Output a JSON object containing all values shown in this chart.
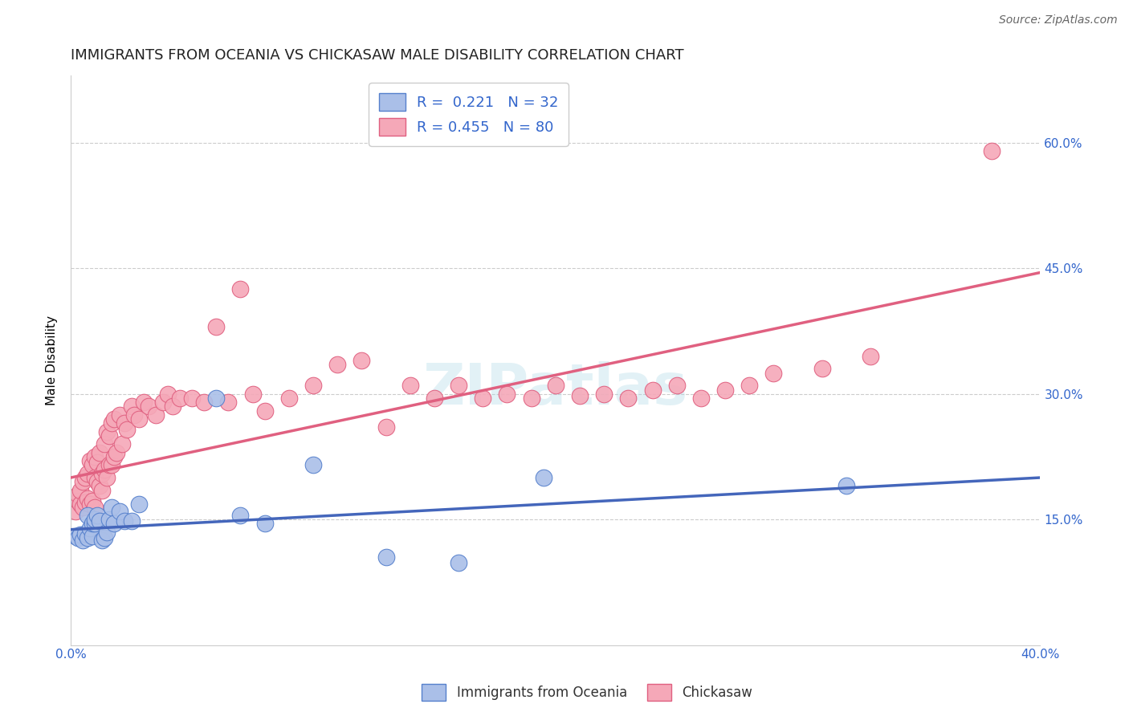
{
  "title": "IMMIGRANTS FROM OCEANIA VS CHICKASAW MALE DISABILITY CORRELATION CHART",
  "source": "Source: ZipAtlas.com",
  "ylabel": "Male Disability",
  "x_min": 0.0,
  "x_max": 0.4,
  "y_min": 0.0,
  "y_max": 0.68,
  "x_ticks": [
    0.0,
    0.1,
    0.2,
    0.3,
    0.4
  ],
  "x_tick_labels": [
    "0.0%",
    "",
    "",
    "",
    "40.0%"
  ],
  "y_ticks_right": [
    0.15,
    0.3,
    0.45,
    0.6
  ],
  "y_tick_labels_right": [
    "15.0%",
    "30.0%",
    "45.0%",
    "60.0%"
  ],
  "legend_text1": "R =  0.221   N = 32",
  "legend_text2": "R = 0.455   N = 80",
  "blue_scatter_color": "#AABFE8",
  "blue_scatter_edge": "#5580CC",
  "pink_scatter_color": "#F5A8B8",
  "pink_scatter_edge": "#E06080",
  "blue_line_color": "#4466BB",
  "pink_line_color": "#E06080",
  "watermark": "ZIPatlas",
  "grid_color": "#CCCCCC",
  "background_color": "#FFFFFF",
  "title_fontsize": 13,
  "tick_fontsize": 11,
  "legend_fontsize": 13,
  "blue_trend_x0": 0.0,
  "blue_trend_y0": 0.138,
  "blue_trend_x1": 0.4,
  "blue_trend_y1": 0.2,
  "pink_trend_x0": 0.0,
  "pink_trend_y0": 0.2,
  "pink_trend_x1": 0.4,
  "pink_trend_y1": 0.445,
  "blue_x": [
    0.002,
    0.003,
    0.004,
    0.005,
    0.006,
    0.007,
    0.007,
    0.008,
    0.009,
    0.009,
    0.01,
    0.01,
    0.011,
    0.012,
    0.013,
    0.014,
    0.015,
    0.016,
    0.017,
    0.018,
    0.02,
    0.022,
    0.025,
    0.028,
    0.06,
    0.07,
    0.08,
    0.1,
    0.13,
    0.16,
    0.195,
    0.32
  ],
  "blue_y": [
    0.13,
    0.128,
    0.132,
    0.125,
    0.133,
    0.128,
    0.155,
    0.14,
    0.13,
    0.145,
    0.145,
    0.15,
    0.155,
    0.148,
    0.125,
    0.128,
    0.135,
    0.15,
    0.165,
    0.145,
    0.16,
    0.148,
    0.148,
    0.168,
    0.295,
    0.155,
    0.145,
    0.215,
    0.105,
    0.098,
    0.2,
    0.19
  ],
  "pink_x": [
    0.002,
    0.003,
    0.003,
    0.004,
    0.004,
    0.005,
    0.005,
    0.006,
    0.006,
    0.007,
    0.007,
    0.008,
    0.008,
    0.009,
    0.009,
    0.01,
    0.01,
    0.01,
    0.011,
    0.011,
    0.012,
    0.012,
    0.013,
    0.013,
    0.014,
    0.014,
    0.015,
    0.015,
    0.016,
    0.016,
    0.017,
    0.017,
    0.018,
    0.018,
    0.019,
    0.02,
    0.021,
    0.022,
    0.023,
    0.025,
    0.026,
    0.028,
    0.03,
    0.032,
    0.035,
    0.038,
    0.04,
    0.042,
    0.045,
    0.05,
    0.055,
    0.06,
    0.065,
    0.07,
    0.075,
    0.08,
    0.09,
    0.1,
    0.11,
    0.12,
    0.13,
    0.14,
    0.15,
    0.16,
    0.17,
    0.18,
    0.19,
    0.2,
    0.21,
    0.22,
    0.23,
    0.24,
    0.25,
    0.26,
    0.27,
    0.28,
    0.29,
    0.31,
    0.33,
    0.38
  ],
  "pink_y": [
    0.16,
    0.172,
    0.18,
    0.168,
    0.185,
    0.165,
    0.195,
    0.17,
    0.2,
    0.175,
    0.205,
    0.168,
    0.22,
    0.172,
    0.215,
    0.165,
    0.2,
    0.225,
    0.195,
    0.218,
    0.19,
    0.23,
    0.205,
    0.185,
    0.21,
    0.24,
    0.2,
    0.255,
    0.215,
    0.25,
    0.215,
    0.265,
    0.225,
    0.27,
    0.23,
    0.275,
    0.24,
    0.265,
    0.258,
    0.285,
    0.275,
    0.27,
    0.29,
    0.285,
    0.275,
    0.29,
    0.3,
    0.285,
    0.295,
    0.295,
    0.29,
    0.38,
    0.29,
    0.425,
    0.3,
    0.28,
    0.295,
    0.31,
    0.335,
    0.34,
    0.26,
    0.31,
    0.295,
    0.31,
    0.295,
    0.3,
    0.295,
    0.31,
    0.298,
    0.3,
    0.295,
    0.305,
    0.31,
    0.295,
    0.305,
    0.31,
    0.325,
    0.33,
    0.345,
    0.59
  ]
}
